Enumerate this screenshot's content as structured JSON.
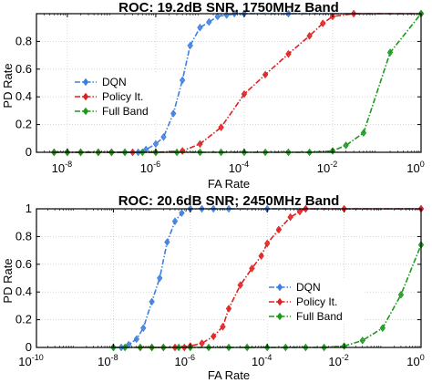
{
  "chart_data": [
    {
      "type": "line",
      "title": "ROC: 19.2dB SNR, 1750MHz Band",
      "xlabel": "FA Rate",
      "ylabel": "PD Rate",
      "xscale": "log",
      "xlim": [
        2e-09,
        1
      ],
      "ylim": [
        0,
        1
      ],
      "xticks": [
        {
          "base": "10",
          "exp": "-8",
          "value": 1e-08
        },
        {
          "base": "10",
          "exp": "-6",
          "value": 1e-06
        },
        {
          "base": "10",
          "exp": "-4",
          "value": 0.0001
        },
        {
          "base": "10",
          "exp": "-2",
          "value": 0.01
        },
        {
          "base": "10",
          "exp": "0",
          "value": 1
        }
      ],
      "yticks": [
        "0",
        "0.2",
        "0.4",
        "0.6",
        "0.8"
      ],
      "yticks_values": [
        0,
        0.2,
        0.4,
        0.6,
        0.8
      ],
      "grid": true,
      "legend_position": "middle-left",
      "series": [
        {
          "name": "DQN",
          "color": "#3d7fe0",
          "marker": "diamond",
          "x": [
            5e-09,
            1e-08,
            2e-08,
            5e-08,
            1e-07,
            2e-07,
            4e-07,
            6e-07,
            1e-06,
            1.5e-06,
            2.5e-06,
            4e-06,
            6e-06,
            1e-05,
            1.6e-05,
            2.5e-05,
            4e-05,
            6e-05,
            0.0001,
            0.001,
            1
          ],
          "y": [
            0,
            0,
            0,
            0,
            0,
            0,
            0,
            0.02,
            0.06,
            0.11,
            0.28,
            0.52,
            0.77,
            0.9,
            0.94,
            0.98,
            0.99,
            1,
            1,
            1,
            1
          ]
        },
        {
          "name": "Policy It.",
          "color": "#e02020",
          "marker": "diamond",
          "x": [
            5e-09,
            1e-08,
            2e-08,
            5e-08,
            1e-07,
            3e-07,
            1e-06,
            4e-06,
            1e-05,
            3e-05,
            0.0001,
            0.0003,
            0.001,
            0.003,
            0.006,
            0.01,
            0.03,
            1
          ],
          "y": [
            0,
            0,
            0,
            0,
            0,
            0,
            0,
            0.01,
            0.06,
            0.18,
            0.42,
            0.56,
            0.71,
            0.84,
            0.93,
            0.98,
            1,
            1
          ]
        },
        {
          "name": "Full Band",
          "color": "#1a9a1a",
          "marker": "diamond",
          "x": [
            5e-09,
            1e-08,
            2e-08,
            5e-08,
            1e-07,
            2e-07,
            5e-07,
            1e-06,
            3e-06,
            1e-05,
            3e-05,
            0.0001,
            0.0003,
            0.001,
            0.003,
            0.01,
            0.02,
            0.05,
            0.2,
            1
          ],
          "y": [
            0,
            0,
            0,
            0,
            0,
            0,
            0,
            0,
            0,
            0,
            0,
            0,
            0,
            0,
            0,
            0.01,
            0.05,
            0.14,
            0.72,
            1
          ]
        }
      ]
    },
    {
      "type": "line",
      "title": "ROC: 20.6dB SNR; 2450MHz Band",
      "xlabel": "FA Rate",
      "ylabel": "PD Rate",
      "xscale": "log",
      "xlim": [
        1e-10,
        1
      ],
      "ylim": [
        0,
        1
      ],
      "xticks": [
        {
          "base": "10",
          "exp": "-10",
          "value": 1e-10
        },
        {
          "base": "10",
          "exp": "-8",
          "value": 1e-08
        },
        {
          "base": "10",
          "exp": "-6",
          "value": 1e-06
        },
        {
          "base": "10",
          "exp": "-4",
          "value": 0.0001
        },
        {
          "base": "10",
          "exp": "-2",
          "value": 0.01
        },
        {
          "base": "10",
          "exp": "0",
          "value": 1
        }
      ],
      "yticks": [
        "0",
        "0.2",
        "0.4",
        "0.6",
        "0.8",
        "1"
      ],
      "yticks_values": [
        0,
        0.2,
        0.4,
        0.6,
        0.8,
        1
      ],
      "grid": true,
      "legend_position": "bottom-right",
      "series": [
        {
          "name": "DQN",
          "color": "#3d7fe0",
          "marker": "diamond",
          "x": [
            1e-08,
            1.6e-08,
            2.5e-08,
            4e-08,
            6e-08,
            1e-07,
            1.6e-07,
            2.5e-07,
            4e-07,
            6e-07,
            1e-06,
            2e-06,
            4e-06,
            1e-05,
            0.0001,
            0.001,
            1
          ],
          "y": [
            0,
            0,
            0.02,
            0.06,
            0.14,
            0.33,
            0.5,
            0.76,
            0.91,
            0.97,
            1,
            1,
            1,
            1,
            1,
            1,
            1
          ]
        },
        {
          "name": "Policy It.",
          "color": "#e02020",
          "marker": "diamond",
          "x": [
            5e-08,
            1e-07,
            2e-07,
            4e-07,
            7e-07,
            1e-06,
            2e-06,
            4e-06,
            7e-06,
            1e-05,
            2e-05,
            4e-05,
            7e-05,
            0.0001,
            0.0002,
            0.0004,
            0.0007,
            0.001,
            0.01,
            1
          ],
          "y": [
            0,
            0,
            0,
            0,
            0,
            0.01,
            0.03,
            0.08,
            0.15,
            0.28,
            0.45,
            0.57,
            0.66,
            0.75,
            0.85,
            0.94,
            0.98,
            1,
            1,
            1
          ]
        },
        {
          "name": "Full Band",
          "color": "#1a9a1a",
          "marker": "diamond",
          "x": [
            1e-08,
            2e-08,
            5e-08,
            1e-07,
            2e-07,
            5e-07,
            1e-06,
            3e-06,
            1e-05,
            3e-05,
            0.0001,
            0.0003,
            0.001,
            0.003,
            0.01,
            0.03,
            0.1,
            0.3,
            1
          ],
          "y": [
            0,
            0,
            0,
            0,
            0,
            0,
            0,
            0,
            0,
            0,
            0,
            0,
            0,
            0,
            0.01,
            0.05,
            0.14,
            0.38,
            0.74
          ]
        }
      ]
    }
  ]
}
